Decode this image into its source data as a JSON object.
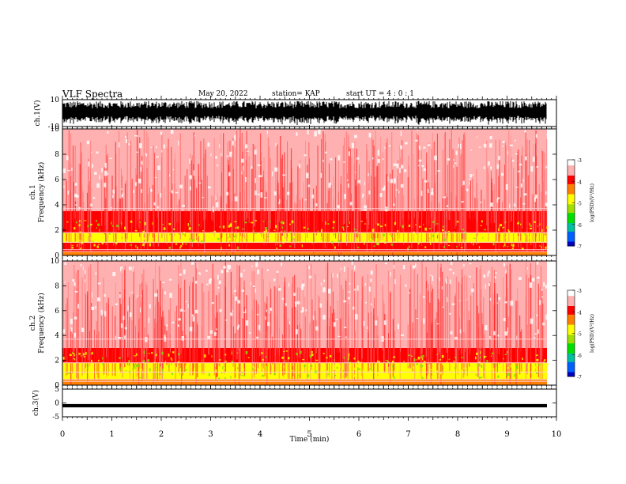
{
  "header": {
    "title": "VLF Spectra",
    "date": "May 20, 2022",
    "station": "station= KAP",
    "start": "start  UT =   4 : 0  : 1"
  },
  "chart_data": [
    {
      "type": "line",
      "panel": "waveform-ch1",
      "ylabel": "ch.1(V)",
      "ylim": [
        -10,
        10
      ],
      "yticklabels": [
        "10",
        "-10"
      ],
      "xlim": [
        0,
        10
      ],
      "description_values": {
        "signal_min": -9,
        "signal_max": 9
      }
    },
    {
      "type": "heatmap",
      "panel": "spectrogram-ch1",
      "ylabel": "ch.1\nFrequency  (kHz)",
      "ylim": [
        0,
        10
      ],
      "yticklabels": [
        "0",
        "2",
        "4",
        "6",
        "8",
        "10"
      ],
      "xlim": [
        0,
        10
      ],
      "colorbar": {
        "label": "log(PSD)(V²/Hz)",
        "range": [
          -7,
          -3
        ],
        "ticklabels": [
          "-3",
          "-4",
          "-5",
          "-6",
          "-7"
        ]
      },
      "bands_khz": [
        {
          "from": 0,
          "to": 0.3,
          "level": -4.2
        },
        {
          "from": 0.3,
          "to": 1.0,
          "level": -4.0
        },
        {
          "from": 1.0,
          "to": 1.8,
          "level": -4.6
        },
        {
          "from": 1.8,
          "to": 3.5,
          "level": -4.0
        },
        {
          "from": 3.5,
          "to": 10,
          "level": -3.4
        }
      ]
    },
    {
      "type": "heatmap",
      "panel": "spectrogram-ch2",
      "ylabel": "ch.2\nFrequency  (kHz)",
      "ylim": [
        0,
        10
      ],
      "yticklabels": [
        "0",
        "2",
        "4",
        "6",
        "8",
        "10"
      ],
      "xlim": [
        0,
        10
      ],
      "colorbar": {
        "label": "log(PSD)(V²/Hz)",
        "range": [
          -7,
          -3
        ],
        "ticklabels": [
          "-3",
          "-4",
          "-5",
          "-6",
          "-7"
        ]
      },
      "bands_khz": [
        {
          "from": 0,
          "to": 0.5,
          "level": -4.3
        },
        {
          "from": 0.5,
          "to": 1.8,
          "level": -5.0
        },
        {
          "from": 1.8,
          "to": 3.0,
          "level": -4.1
        },
        {
          "from": 3.0,
          "to": 10,
          "level": -3.4
        }
      ]
    },
    {
      "type": "line",
      "panel": "waveform-ch3",
      "ylabel": "ch.3(V)",
      "ylim": [
        -5,
        5
      ],
      "yticklabels": [
        "5",
        "0",
        "-5"
      ],
      "xlim": [
        0,
        10
      ],
      "xlabel": "Time  (min)",
      "xticklabels": [
        "0",
        "1",
        "2",
        "3",
        "4",
        "5",
        "6",
        "7",
        "8",
        "9",
        "10"
      ],
      "signal_level": -1,
      "signal_halfwidth": 0.6
    }
  ],
  "colors": {
    "axis": "#000000",
    "colormap": [
      "#0000c0",
      "#0060ff",
      "#00c0a0",
      "#00e000",
      "#a0e000",
      "#ffff00",
      "#ff8000",
      "#ff0000",
      "#ffb0b0",
      "#ffffff"
    ]
  }
}
